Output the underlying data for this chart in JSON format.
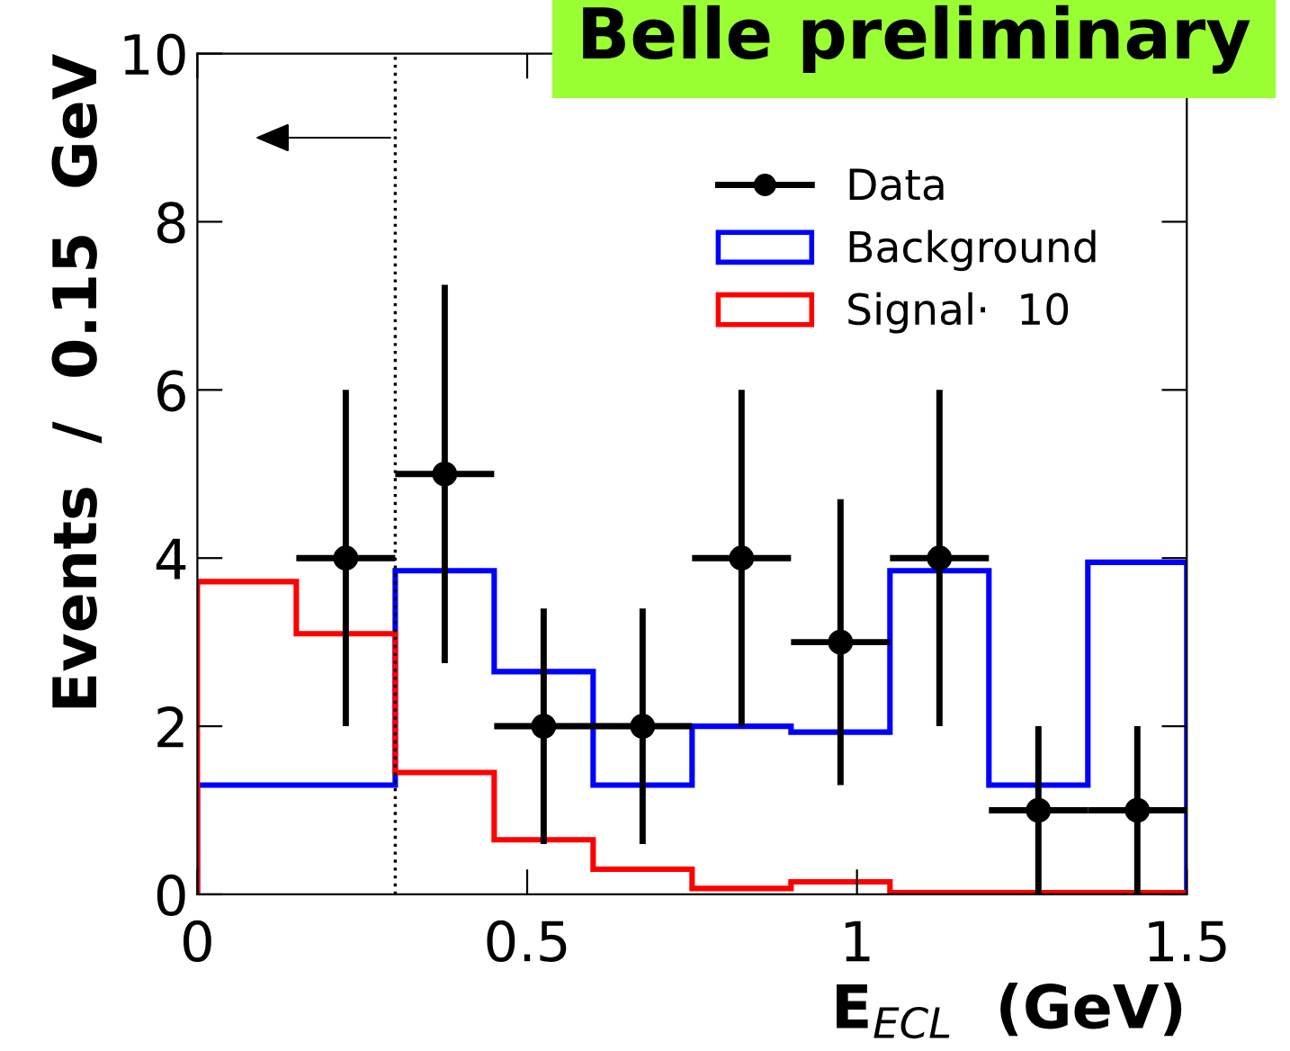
{
  "chart_data": {
    "type": "histogram",
    "title": "Belle preliminary",
    "xlabel": "E$_{ECL}$  (GeV)",
    "ylabel": "Events  /  0.15  GeV",
    "xlim": [
      0,
      1.5
    ],
    "xticks": [
      0,
      {
        "value": 0.5,
        "label": "0.5"
      },
      1,
      {
        "value": 1.5,
        "label": "1.5"
      }
    ],
    "ylim": [
      0,
      10
    ],
    "yticks": [
      0,
      2,
      4,
      6,
      8,
      10
    ],
    "grid": false,
    "legend": "top right",
    "series": [
      {
        "name": "Background",
        "type": "histogram",
        "color": "#0000ff",
        "bins": [
          0,
          0.15,
          0.3,
          0.45,
          0.6,
          0.75,
          0.9,
          1.05,
          1.2,
          1.35,
          1.5
        ],
        "values": [
          1.3,
          1.3,
          3.85,
          2.65,
          1.3,
          2.0,
          1.93,
          3.85,
          1.3,
          3.95
        ]
      },
      {
        "name": "Signal·  10",
        "type": "histogram",
        "color": "#ff0000",
        "bins": [
          0,
          0.15,
          0.3,
          0.45,
          0.6,
          0.75,
          0.9,
          1.05,
          1.2,
          1.35,
          1.5
        ],
        "values": [
          3.72,
          3.1,
          1.45,
          0.65,
          0.3,
          0.07,
          0.15,
          0.02,
          0.02,
          0.02
        ]
      },
      {
        "name": "Data",
        "type": "scatter",
        "color": "#000000",
        "marker": "circle",
        "x": [
          0.225,
          0.375,
          0.525,
          0.675,
          0.825,
          0.975,
          1.125,
          1.275,
          1.425
        ],
        "values": [
          4,
          5,
          2,
          2,
          4,
          3,
          4,
          1,
          1
        ],
        "errors": [
          [
            2,
            6
          ],
          [
            2.75,
            7.25
          ],
          [
            0.6,
            3.4
          ],
          [
            0.6,
            3.4
          ],
          [
            2,
            6
          ],
          [
            1.3,
            4.7
          ],
          [
            2,
            6
          ],
          [
            0,
            2
          ],
          [
            0,
            2
          ]
        ],
        "xerrors": [
          0.075,
          0.075,
          0.075,
          0.075,
          0.075,
          0.075,
          0.075,
          0.075,
          0.075
        ]
      }
    ],
    "ref_lines": [
      {
        "axis": "x",
        "value": 0.3,
        "label": null,
        "color": "#000000",
        "line_style": "dotted"
      }
    ]
  }
}
